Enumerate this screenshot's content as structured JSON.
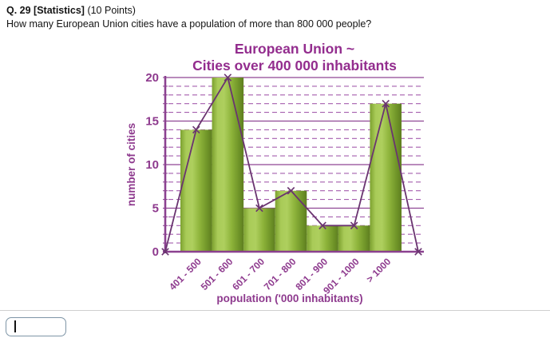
{
  "question": {
    "heading_bold": "Q. 29 [Statistics]",
    "heading_points": "(10 Points)",
    "prompt": "How many European Union cities have a population of more than 800 000 people?"
  },
  "answer": {
    "value": "",
    "placeholder": ""
  },
  "chart_data": {
    "type": "bar",
    "title": "European Union ~ Cities over 400 000 inhabitants",
    "title_lines": [
      "European Union ~",
      "Cities over 400 000 inhabitants"
    ],
    "categories": [
      "401 - 500",
      "501 - 600",
      "601 - 700",
      "701 - 800",
      "801 - 900",
      "901 - 1000",
      "> 1000"
    ],
    "values": [
      14,
      20,
      5,
      7,
      3,
      3,
      17
    ],
    "xlabel": "population ('000 inhabitants)",
    "ylabel": "number of cities",
    "ylim": [
      0,
      20
    ],
    "yticks": [
      0,
      5,
      10,
      15,
      20
    ],
    "minor_grid_step": 1,
    "grid": {
      "major": "solid",
      "minor": "dashed"
    },
    "legend": "none",
    "overlay_polygon": {
      "description": "frequency polygon with x markers, from 0 at axis origin through each bar midpoint back to 0 at axis end",
      "values": [
        0,
        14,
        20,
        5,
        7,
        3,
        3,
        17,
        0
      ],
      "marker": "x"
    },
    "colors": {
      "title": "#932d8e",
      "axis_text": "#8e3a8e",
      "axis_line": "#8b4190",
      "grid_major": "#8f4694",
      "grid_minor": "#a55fae",
      "bar_edge_dark": "#5e7e20",
      "bar_mid": "#8db33a",
      "bar_light": "#a9cb58",
      "polygon_line": "#6a3470"
    }
  }
}
